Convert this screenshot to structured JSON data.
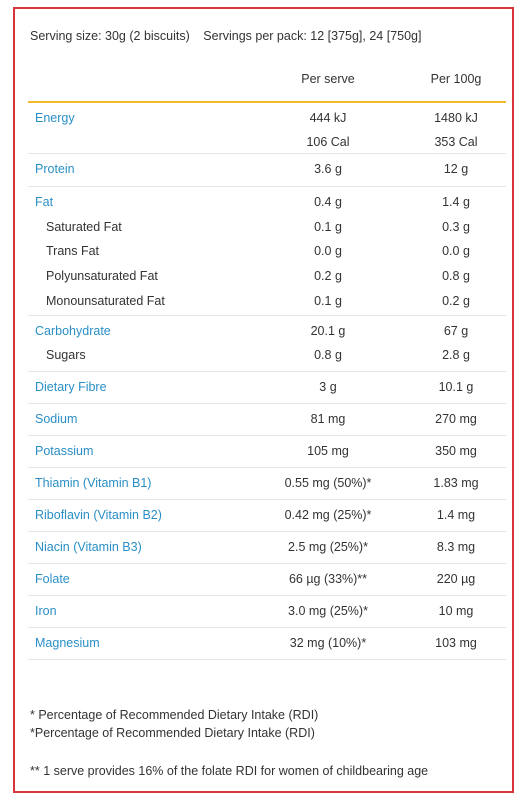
{
  "serving": {
    "size": "Serving size: 30g (2 biscuits)",
    "per_pack": "Servings per pack: 12 [375g], 24 [750g]"
  },
  "columns": {
    "per_serve": "Per serve",
    "per_100g": "Per 100g"
  },
  "colors": {
    "accent_line": "#f2b92e",
    "border": "#d9343a",
    "nutrient": "#2a8fc6"
  },
  "rows": {
    "energy": {
      "name": "Energy",
      "kj_serve": "444 kJ",
      "kj_100": "1480 kJ",
      "cal_serve": "106 Cal",
      "cal_100": "353 Cal"
    },
    "protein": {
      "name": "Protein",
      "serve": "3.6 g",
      "per100": "12 g"
    },
    "fat": {
      "name": "Fat",
      "serve": "0.4 g",
      "per100": "1.4 g"
    },
    "saturated_fat": {
      "name": "Saturated Fat",
      "serve": "0.1 g",
      "per100": "0.3 g"
    },
    "trans_fat": {
      "name": "Trans Fat",
      "serve": "0.0 g",
      "per100": "0.0 g"
    },
    "poly_fat": {
      "name": "Polyunsaturated Fat",
      "serve": "0.2 g",
      "per100": "0.8 g"
    },
    "mono_fat": {
      "name": "Monounsaturated Fat",
      "serve": "0.1 g",
      "per100": "0.2 g"
    },
    "carbohydrate": {
      "name": "Carbohydrate",
      "serve": "20.1 g",
      "per100": "67 g"
    },
    "sugars": {
      "name": "Sugars",
      "serve": "0.8 g",
      "per100": "2.8 g"
    },
    "dietary_fibre": {
      "name": "Dietary Fibre",
      "serve": "3 g",
      "per100": "10.1 g"
    },
    "sodium": {
      "name": "Sodium",
      "serve": "81 mg",
      "per100": "270 mg"
    },
    "potassium": {
      "name": "Potassium",
      "serve": "105 mg",
      "per100": "350 mg"
    },
    "thiamin": {
      "name": "Thiamin (Vitamin B1)",
      "serve": "0.55 mg (50%)*",
      "per100": "1.83 mg"
    },
    "riboflavin": {
      "name": "Riboflavin (Vitamin B2)",
      "serve": "0.42 mg (25%)*",
      "per100": "1.4 mg"
    },
    "niacin": {
      "name": "Niacin (Vitamin B3)",
      "serve": "2.5 mg (25%)*",
      "per100": "8.3 mg"
    },
    "folate": {
      "name": "Folate",
      "serve": "66 µg (33%)**",
      "per100": "220 µg"
    },
    "iron": {
      "name": "Iron",
      "serve": "3.0 mg (25%)*",
      "per100": "10 mg"
    },
    "magnesium": {
      "name": "Magnesium",
      "serve": "32 mg (10%)*",
      "per100": "103 mg"
    }
  },
  "footnotes": {
    "note1": "* Percentage of Recommended Dietary Intake (RDI)",
    "note2": "*Percentage of Recommended Dietary Intake (RDI)",
    "note3": "** 1 serve provides 16% of the folate RDI for women of childbearing age"
  }
}
